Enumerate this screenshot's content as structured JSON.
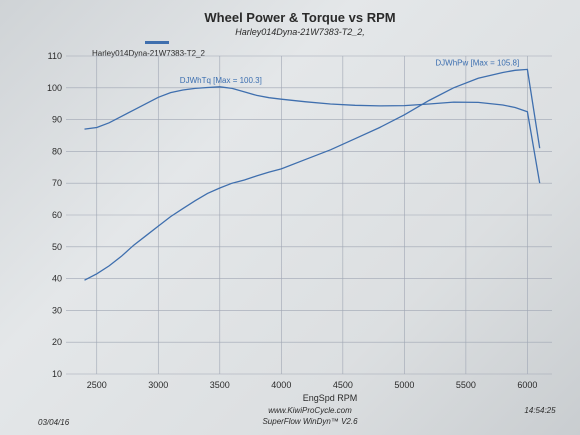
{
  "chart_data": {
    "type": "line",
    "title": "Wheel Power & Torque vs RPM",
    "subtitle": "Harley014Dyna-21W7383-T2_2,",
    "legend": {
      "label": "Harley014Dyna-21W7383-T2_2",
      "placement": "top-left",
      "color": "#3f6fae"
    },
    "xlabel": "EngSpd  RPM",
    "xlim": [
      2250,
      6200
    ],
    "ylim": [
      10,
      110
    ],
    "x_ticks": [
      2500,
      3000,
      3500,
      4000,
      4500,
      5000,
      5500,
      6000
    ],
    "y_ticks": [
      10,
      20,
      30,
      40,
      50,
      60,
      70,
      80,
      90,
      100,
      110
    ],
    "grid": true,
    "series": [
      {
        "name": "DJWhTq",
        "annotation": "DJWhTq [Max = 100.3]",
        "color": "#3f6fae",
        "x": [
          2400,
          2500,
          2600,
          2700,
          2800,
          2900,
          3000,
          3100,
          3200,
          3300,
          3400,
          3500,
          3600,
          3700,
          3800,
          3900,
          4000,
          4200,
          4400,
          4600,
          4800,
          5000,
          5200,
          5400,
          5600,
          5800,
          5900,
          6000,
          6100
        ],
        "y": [
          87,
          87.5,
          89,
          91,
          93,
          95,
          97,
          98.5,
          99.3,
          99.8,
          100.1,
          100.3,
          99.8,
          98.7,
          97.6,
          96.9,
          96.4,
          95.6,
          94.9,
          94.5,
          94.3,
          94.4,
          94.9,
          95.5,
          95.4,
          94.6,
          93.8,
          92.5,
          70
        ]
      },
      {
        "name": "DJWhPw",
        "annotation": "DJWhPw [Max = 105.8]",
        "color": "#3f6fae",
        "x": [
          2400,
          2500,
          2600,
          2700,
          2800,
          2900,
          3000,
          3100,
          3200,
          3300,
          3400,
          3500,
          3600,
          3700,
          3800,
          3900,
          4000,
          4200,
          4400,
          4600,
          4800,
          5000,
          5200,
          5400,
          5600,
          5800,
          5900,
          6000,
          6100
        ],
        "y": [
          39.5,
          41.5,
          44,
          47,
          50.5,
          53.5,
          56.5,
          59.5,
          62,
          64.5,
          66.8,
          68.5,
          70,
          71,
          72.3,
          73.5,
          74.5,
          77.5,
          80.5,
          84,
          87.5,
          91.5,
          96,
          100,
          103,
          104.8,
          105.5,
          105.8,
          81
        ]
      }
    ]
  },
  "footer": {
    "date": "03/04/16",
    "time": "14:54:25",
    "website": "www.KiwiProCycle.com",
    "software": "SuperFlow WinDyn™ V2.6"
  }
}
